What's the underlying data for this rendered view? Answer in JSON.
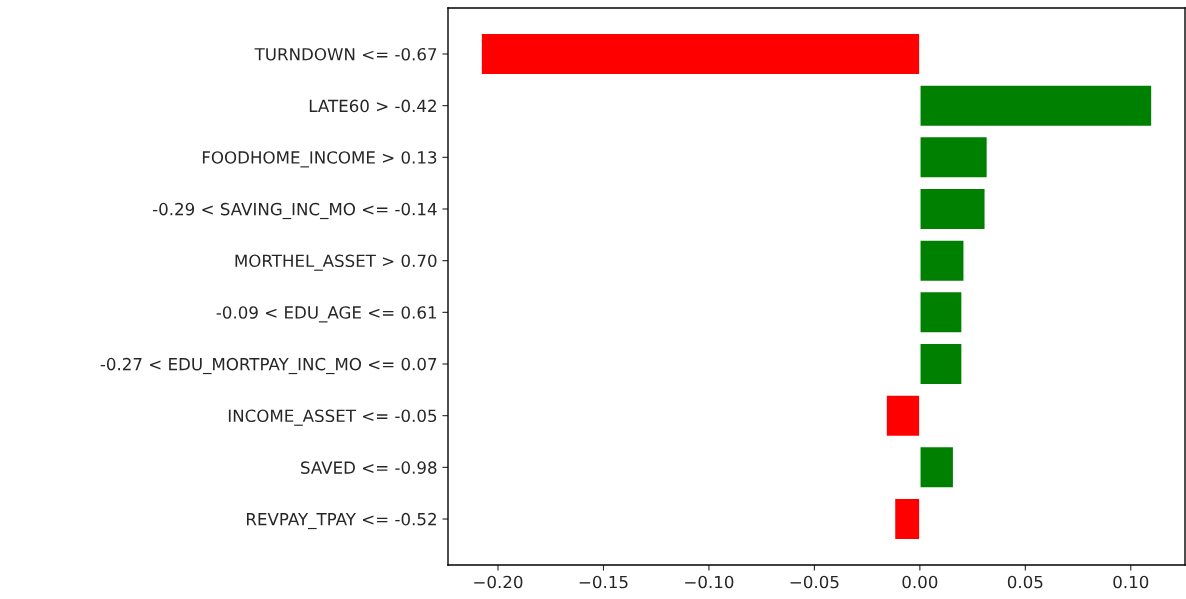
{
  "chart_data": {
    "type": "bar",
    "orientation": "horizontal",
    "categories": [
      "TURNDOWN <= -0.67",
      "LATE60 > -0.42",
      "FOODHOME_INCOME > 0.13",
      "-0.29 < SAVING_INC_MO <= -0.14",
      "MORTHEL_ASSET > 0.70",
      "-0.09 < EDU_AGE <= 0.61",
      "-0.27 < EDU_MORTPAY_INC_MO <= 0.07",
      "INCOME_ASSET <= -0.05",
      "SAVED <= -0.98",
      "REVPAY_TPAY <= -0.52"
    ],
    "values": [
      -0.208,
      0.11,
      0.032,
      0.031,
      0.021,
      0.02,
      0.02,
      -0.016,
      0.016,
      -0.012
    ],
    "colors": [
      "#ff0000",
      "#008000",
      "#008000",
      "#008000",
      "#008000",
      "#008000",
      "#008000",
      "#ff0000",
      "#008000",
      "#ff0000"
    ],
    "xlim": [
      -0.2237,
      0.1257
    ],
    "xticks": [
      {
        "value": -0.2,
        "label": "−0.20"
      },
      {
        "value": -0.15,
        "label": "−0.15"
      },
      {
        "value": -0.1,
        "label": "−0.10"
      },
      {
        "value": -0.05,
        "label": "−0.05"
      },
      {
        "value": 0,
        "label": "0.00"
      },
      {
        "value": 0.05,
        "label": "0.05"
      },
      {
        "value": 0.1,
        "label": "0.10"
      }
    ],
    "grid": false,
    "legend": false
  }
}
